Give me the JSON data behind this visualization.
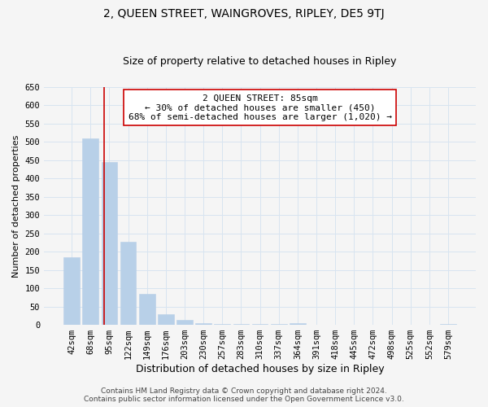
{
  "title": "2, QUEEN STREET, WAINGROVES, RIPLEY, DE5 9TJ",
  "subtitle": "Size of property relative to detached houses in Ripley",
  "xlabel": "Distribution of detached houses by size in Ripley",
  "ylabel": "Number of detached properties",
  "categories": [
    "42sqm",
    "68sqm",
    "95sqm",
    "122sqm",
    "149sqm",
    "176sqm",
    "203sqm",
    "230sqm",
    "257sqm",
    "283sqm",
    "310sqm",
    "337sqm",
    "364sqm",
    "391sqm",
    "418sqm",
    "445sqm",
    "472sqm",
    "498sqm",
    "525sqm",
    "552sqm",
    "579sqm"
  ],
  "values": [
    185,
    510,
    445,
    228,
    85,
    28,
    13,
    4,
    2,
    2,
    2,
    2,
    4,
    0,
    0,
    0,
    0,
    0,
    0,
    0,
    2
  ],
  "bar_color": "#b8d0e8",
  "bar_edge_color": "#b8d0e8",
  "property_line_x": 1.72,
  "property_line_color": "#cc0000",
  "annotation_text": "2 QUEEN STREET: 85sqm\n← 30% of detached houses are smaller (450)\n68% of semi-detached houses are larger (1,020) →",
  "annotation_box_color": "#ffffff",
  "annotation_box_edge_color": "#cc0000",
  "ylim": [
    0,
    650
  ],
  "yticks": [
    0,
    50,
    100,
    150,
    200,
    250,
    300,
    350,
    400,
    450,
    500,
    550,
    600,
    650
  ],
  "footer_line1": "Contains HM Land Registry data © Crown copyright and database right 2024.",
  "footer_line2": "Contains public sector information licensed under the Open Government Licence v3.0.",
  "bg_color": "#f5f5f5",
  "grid_color": "#d8e4f0",
  "title_fontsize": 10,
  "subtitle_fontsize": 9,
  "xlabel_fontsize": 9,
  "ylabel_fontsize": 8,
  "tick_fontsize": 7.5,
  "annotation_fontsize": 8,
  "footer_fontsize": 6.5
}
